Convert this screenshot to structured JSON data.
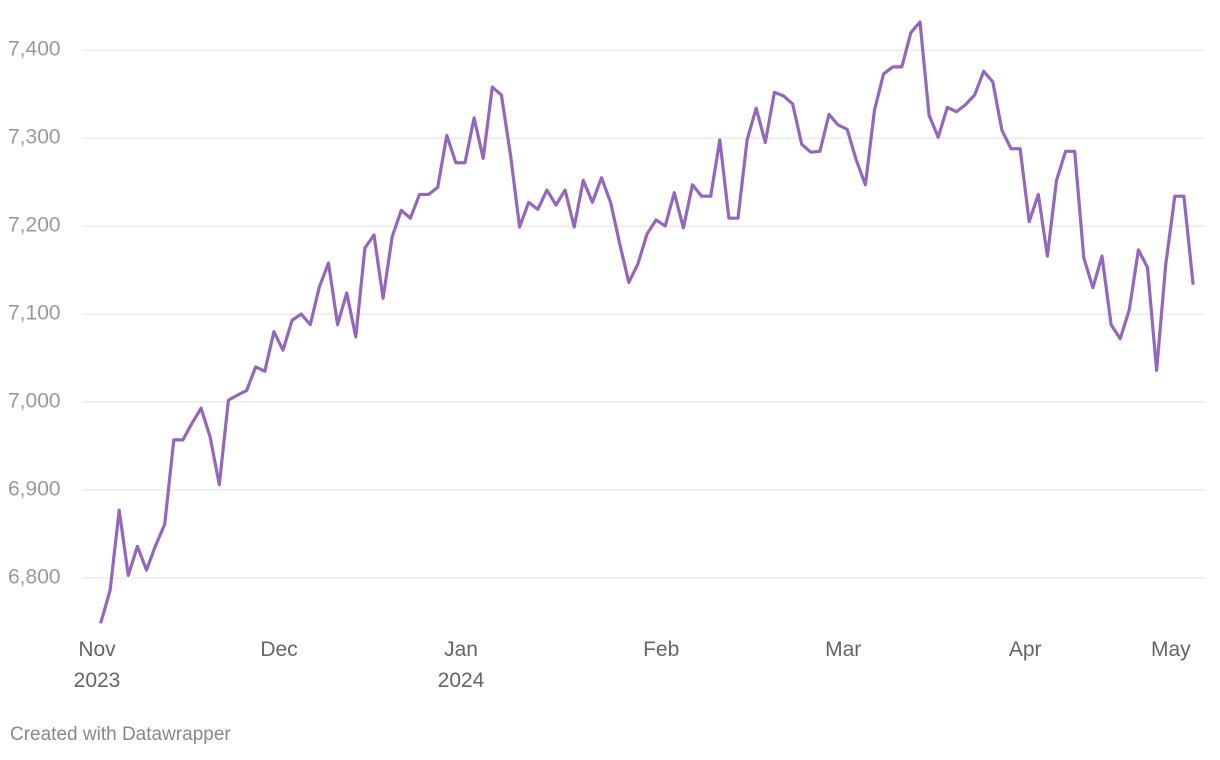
{
  "chart_data": {
    "type": "line",
    "categories": [
      "Nov\n2023",
      null,
      null,
      null,
      null,
      null,
      null,
      null,
      null,
      null,
      null,
      null,
      null,
      null,
      null,
      null,
      null,
      null,
      null,
      null,
      "Dec",
      null,
      null,
      null,
      null,
      null,
      null,
      null,
      null,
      null,
      null,
      null,
      null,
      null,
      null,
      null,
      null,
      null,
      null,
      null,
      "Jan\n2024",
      null,
      null,
      null,
      null,
      null,
      null,
      null,
      null,
      null,
      null,
      null,
      null,
      null,
      null,
      null,
      null,
      null,
      null,
      null,
      null,
      null,
      "Feb",
      null,
      null,
      null,
      null,
      null,
      null,
      null,
      null,
      null,
      null,
      null,
      null,
      null,
      null,
      null,
      null,
      null,
      null,
      null,
      "Mar",
      null,
      null,
      null,
      null,
      null,
      null,
      null,
      null,
      null,
      null,
      null,
      null,
      null,
      null,
      null,
      null,
      null,
      null,
      null,
      "Apr",
      null,
      null,
      null,
      null,
      null,
      null,
      null,
      null,
      null,
      null,
      null,
      null,
      null,
      null,
      null,
      "May",
      null,
      null
    ],
    "values": [
      6750,
      6786,
      6877,
      6803,
      6836,
      6809,
      6837,
      6861,
      6957,
      6957,
      6976,
      6993,
      6960,
      6906,
      7002,
      7008,
      7013,
      7040,
      7035,
      7080,
      7059,
      7093,
      7100,
      7088,
      7131,
      7158,
      7088,
      7124,
      7074,
      7175,
      7190,
      7118,
      7188,
      7218,
      7209,
      7236,
      7236,
      7244,
      7303,
      7272,
      7272,
      7323,
      7277,
      7358,
      7349,
      7281,
      7199,
      7227,
      7219,
      7241,
      7224,
      7241,
      7199,
      7252,
      7227,
      7255,
      7227,
      7180,
      7136,
      7157,
      7191,
      7207,
      7200,
      7238,
      7198,
      7247,
      7234,
      7234,
      7298,
      7209,
      7209,
      7298,
      7334,
      7295,
      7352,
      7348,
      7339,
      7293,
      7284,
      7285,
      7327,
      7315,
      7310,
      7275,
      7247,
      7332,
      7373,
      7381,
      7381,
      7420,
      7432,
      7326,
      7301,
      7335,
      7330,
      7338,
      7349,
      7376,
      7364,
      7309,
      7288,
      7288,
      7205,
      7236,
      7166,
      7252,
      7285,
      7285,
      7164,
      7130,
      7166,
      7088,
      7072,
      7105,
      7173,
      7153,
      7036,
      7156,
      7234,
      7234,
      7135
    ],
    "color": "#9467bd",
    "ylim": [
      6750,
      7432
    ],
    "yticks": [
      {
        "value": 6800,
        "label": "6,800"
      },
      {
        "value": 6900,
        "label": "6,900"
      },
      {
        "value": 7000,
        "label": "7,000"
      },
      {
        "value": 7100,
        "label": "7,100"
      },
      {
        "value": 7200,
        "label": "7,200"
      },
      {
        "value": 7300,
        "label": "7,300"
      },
      {
        "value": 7400,
        "label": "7,400"
      }
    ],
    "grid": true,
    "credit": "Created with Datawrapper"
  }
}
